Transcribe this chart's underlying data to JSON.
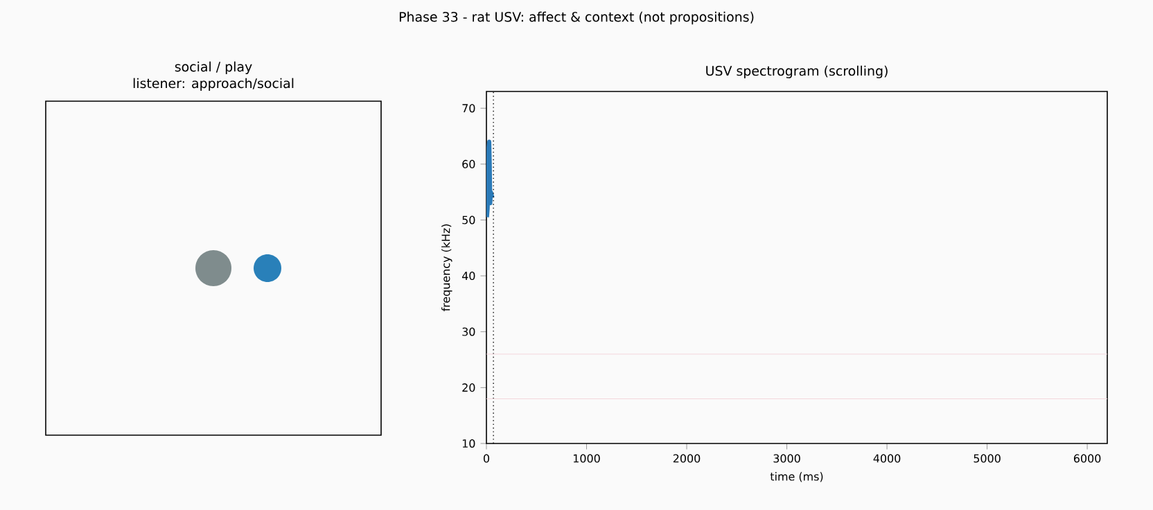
{
  "chart_data": [
    {
      "type": "other",
      "title": "social / play",
      "subtitle": "listener: approach/social",
      "annotations": [
        "Phase 33 - rat USV: affect & context (not propositions)"
      ]
    },
    {
      "type": "line",
      "title": "USV spectrogram (scrolling)",
      "xlabel": "time (ms)",
      "ylabel": "frequency (kHz)",
      "series": [
        {
          "color": "#2a7ab8",
          "x": [
            5,
            12,
            18,
            22,
            28,
            33,
            38,
            45,
            52,
            60
          ],
          "values": [
            50.5,
            52,
            56,
            63,
            64,
            60,
            53,
            55,
            54.5,
            54
          ]
        }
      ],
      "xlim": [
        0,
        6200
      ],
      "ylim": [
        10,
        73
      ],
      "xticks": [
        0,
        1000,
        2000,
        3000,
        4000,
        5000,
        6000
      ],
      "yticks": [
        10,
        20,
        30,
        40,
        50,
        60,
        70
      ],
      "ref_lines": [
        {
          "axis": "x",
          "value": 70,
          "color": "#000000",
          "line_style": "dotted"
        },
        {
          "axis": "y",
          "value": 26,
          "color": "#f4d6dc",
          "line_style": "solid"
        },
        {
          "axis": "y",
          "value": 18,
          "color": "#f4d6dc",
          "line_style": "solid"
        }
      ]
    }
  ]
}
